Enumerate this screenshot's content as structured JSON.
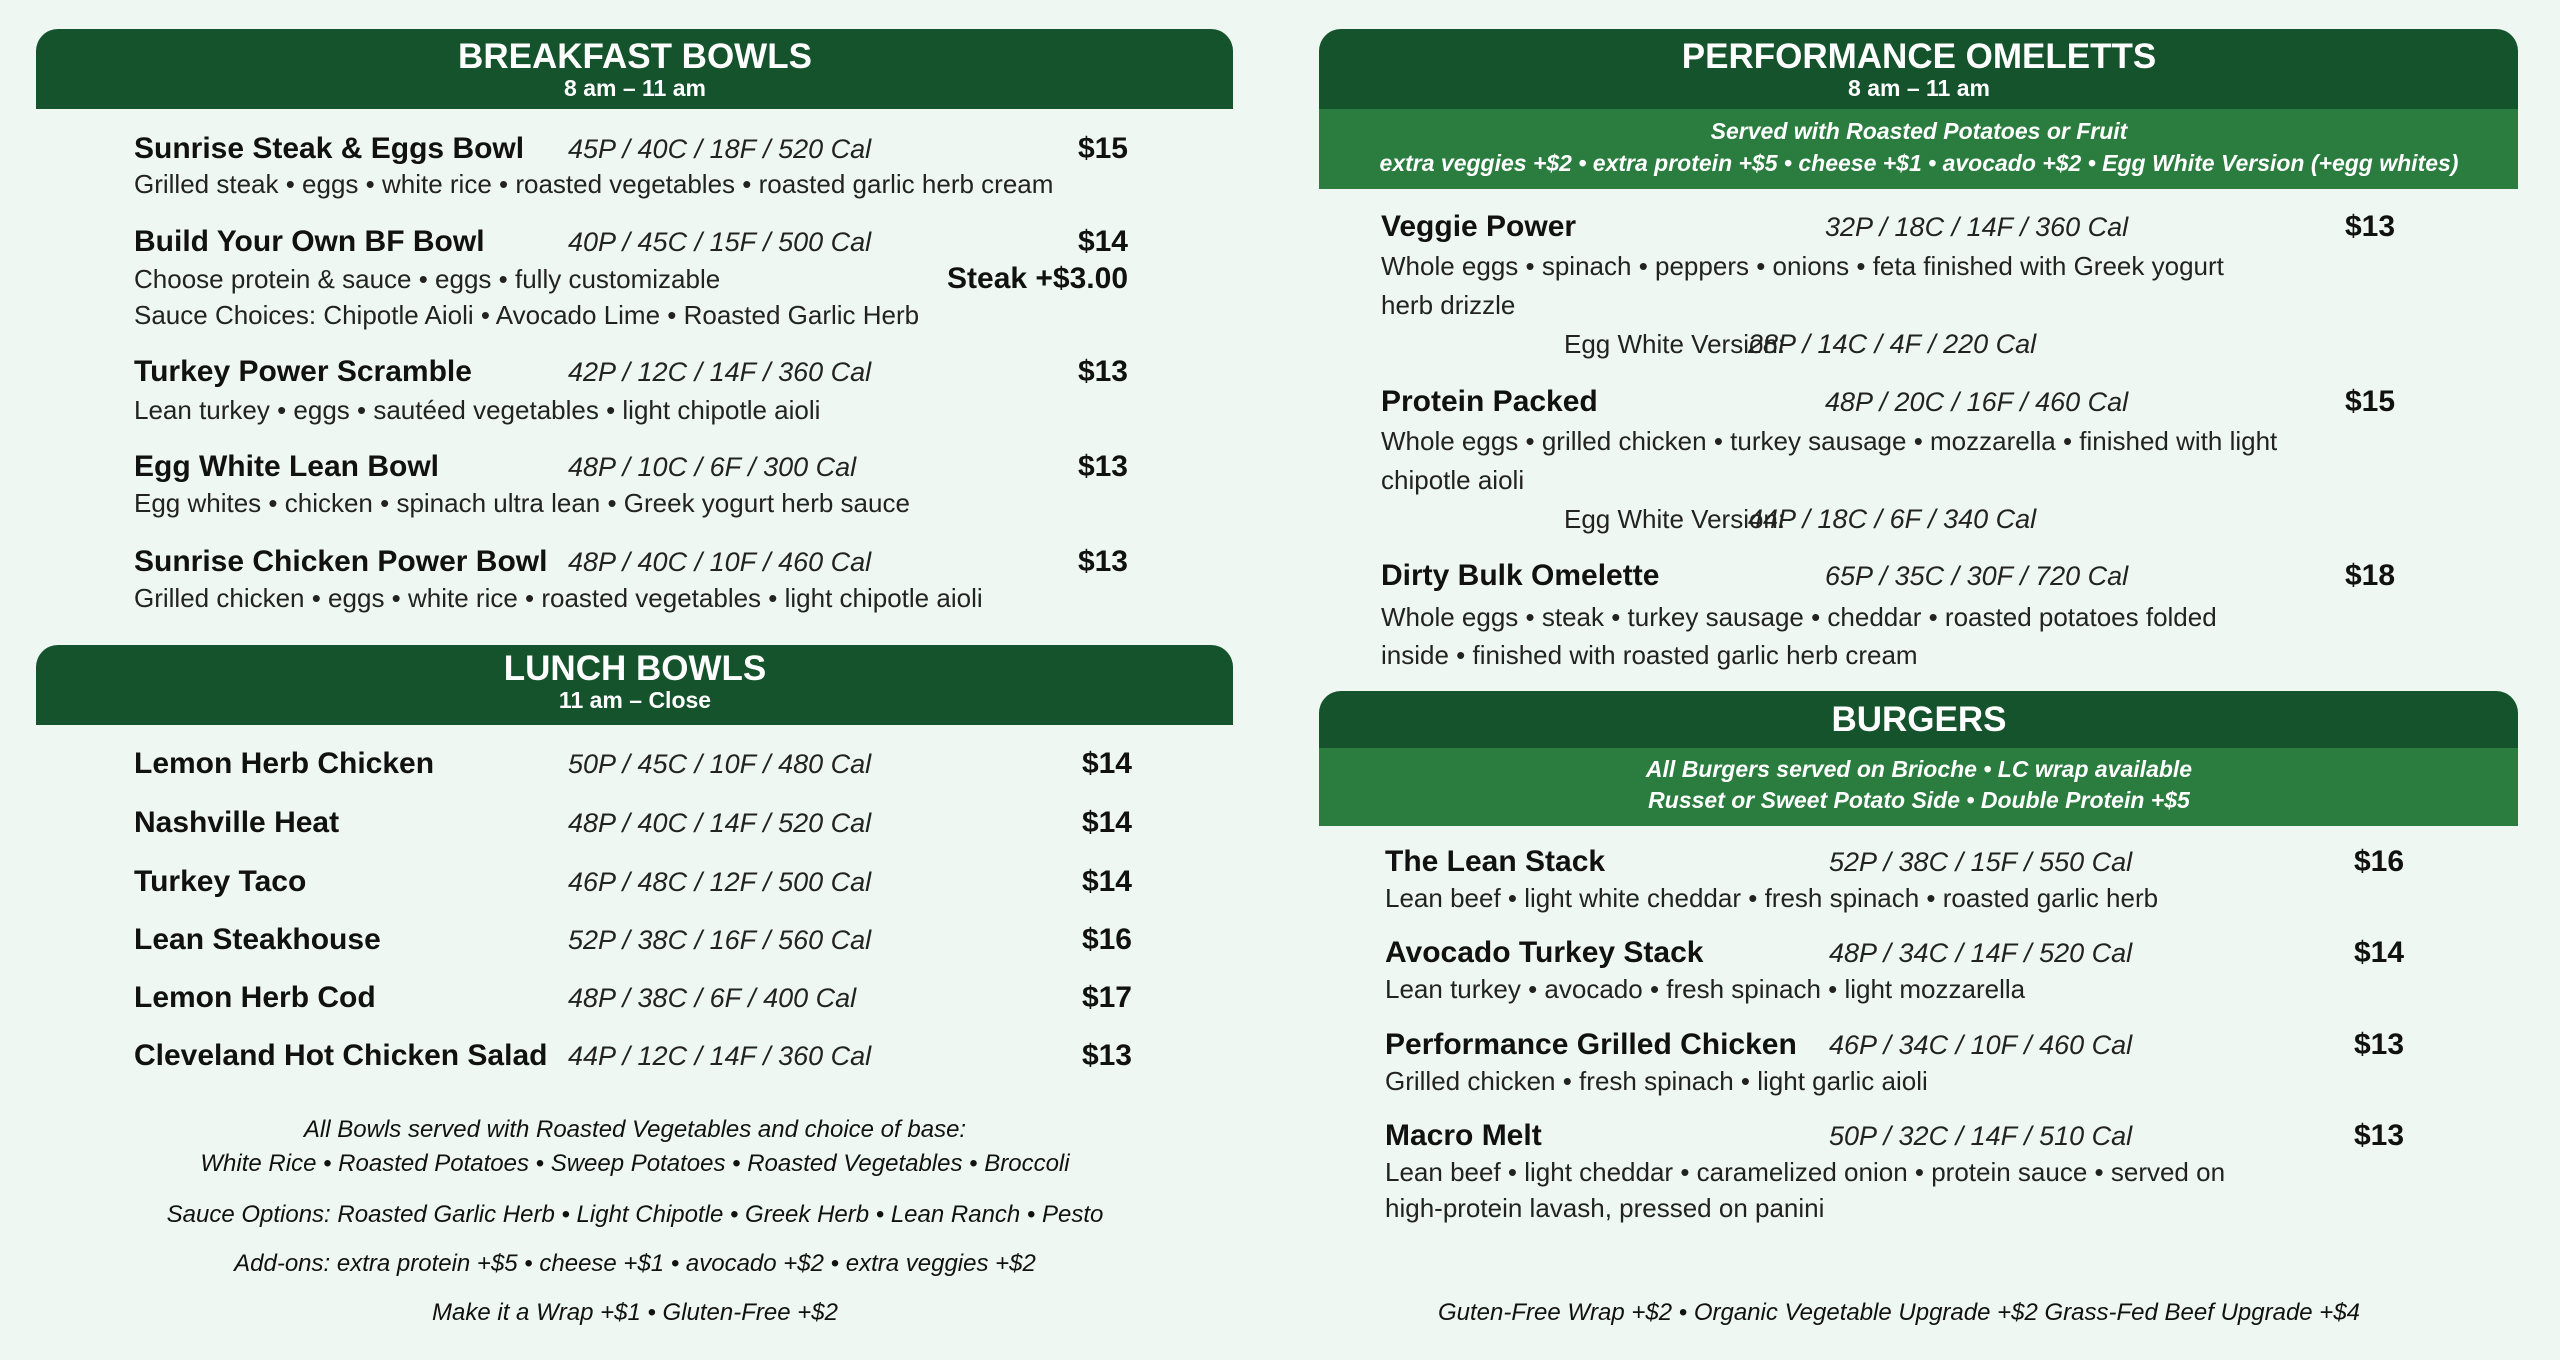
{
  "colors": {
    "header": "#15532c",
    "band": "#2a7d3f",
    "background": "#eef7f1"
  },
  "breakfast": {
    "title": "BREAKFAST BOWLS",
    "hours": "8 am – 11 am",
    "items": [
      {
        "name": "Sunrise Steak & Eggs Bowl",
        "macros": "45P / 40C / 18F / 520 Cal",
        "price": "$15",
        "desc": [
          "Grilled steak • eggs • white rice • roasted vegetables • roasted garlic herb cream"
        ]
      },
      {
        "name": "Build Your Own BF Bowl",
        "macros": "40P / 45C / 15F / 500 Cal",
        "price": "$14",
        "extra": "Steak +$3.00",
        "desc": [
          "Choose protein & sauce • eggs • fully customizable",
          "Sauce Choices: Chipotle Aioli • Avocado Lime • Roasted Garlic Herb"
        ]
      },
      {
        "name": "Turkey Power Scramble",
        "macros": "42P / 12C / 14F / 360 Cal",
        "price": "$13",
        "desc": [
          "Lean turkey • eggs • sautéed vegetables • light chipotle aioli"
        ]
      },
      {
        "name": "Egg White Lean Bowl",
        "macros": "48P / 10C / 6F / 300 Cal",
        "price": "$13",
        "desc": [
          "Egg whites • chicken • spinach ultra lean • Greek yogurt herb sauce"
        ]
      },
      {
        "name": "Sunrise Chicken Power Bowl",
        "macros": "48P / 40C / 10F / 460 Cal",
        "price": "$13",
        "desc": [
          "Grilled chicken • eggs • white rice • roasted vegetables • light chipotle aioli"
        ]
      }
    ]
  },
  "lunch": {
    "title": "LUNCH BOWLS",
    "hours": "11 am – Close",
    "items": [
      {
        "name": "Lemon Herb Chicken",
        "macros": "50P / 45C / 10F / 480 Cal",
        "price": "$14"
      },
      {
        "name": "Nashville Heat",
        "macros": "48P / 40C / 14F / 520 Cal",
        "price": "$14"
      },
      {
        "name": "Turkey Taco",
        "macros": "46P / 48C / 12F / 500 Cal",
        "price": "$14"
      },
      {
        "name": "Lean Steakhouse",
        "macros": "52P / 38C / 16F / 560 Cal",
        "price": "$16"
      },
      {
        "name": "Lemon Herb Cod",
        "macros": "48P / 38C / 6F / 400 Cal",
        "price": "$17"
      },
      {
        "name": "Cleveland Hot Chicken Salad",
        "macros": "44P / 12C / 14F / 360 Cal",
        "price": "$13"
      }
    ],
    "notes": [
      "All Bowls served with Roasted Vegetables and choice of base:",
      "White Rice • Roasted Potatoes • Sweep Potatoes • Roasted Vegetables • Broccoli",
      "Sauce Options: Roasted Garlic Herb • Light Chipotle • Greek Herb • Lean Ranch • Pesto",
      "Add-ons: extra protein +$5 • cheese +$1 •  avocado +$2 • extra veggies +$2",
      "Make it a Wrap +$1 • Gluten-Free +$2"
    ]
  },
  "omelettes": {
    "title": "PERFORMANCE OMELETTS",
    "hours": "8 am – 11 am",
    "band": [
      "Served with Roasted Potatoes or Fruit",
      "extra veggies +$2 • extra protein +$5 • cheese +$1 • avocado +$2 • Egg White Version (+egg whites)"
    ],
    "items": [
      {
        "name": "Veggie Power",
        "macros": "32P / 18C / 14F / 360 Cal",
        "price": "$13",
        "desc": [
          "Whole eggs • spinach • peppers • onions • feta finished with Greek yogurt",
          "herb drizzle"
        ],
        "egg_white_label": "Egg White Version:",
        "egg_white": "28P / 14C / 4F / 220 Cal"
      },
      {
        "name": "Protein Packed",
        "macros": "48P / 20C / 16F / 460 Cal",
        "price": "$15",
        "desc": [
          "Whole eggs • grilled chicken • turkey sausage • mozzarella • finished with light",
          "chipotle aioli"
        ],
        "egg_white_label": "Egg White Version:",
        "egg_white": "44P / 18C / 6F / 340 Cal"
      },
      {
        "name": "Dirty Bulk Omelette",
        "macros": "65P / 35C / 30F / 720 Cal",
        "price": "$18",
        "desc": [
          "Whole eggs • steak • turkey sausage • cheddar • roasted potatoes folded",
          "inside • finished with roasted garlic herb cream"
        ]
      }
    ]
  },
  "burgers": {
    "title": "BURGERS",
    "band": [
      "All Burgers served on Brioche • LC wrap available",
      "Russet or Sweet Potato Side • Double Protein +$5"
    ],
    "items": [
      {
        "name": "The Lean Stack",
        "macros": "52P / 38C / 15F / 550 Cal",
        "price": "$16",
        "desc": [
          "Lean beef • light white cheddar • fresh spinach • roasted garlic herb"
        ]
      },
      {
        "name": "Avocado Turkey Stack",
        "macros": "48P / 34C / 14F / 520 Cal",
        "price": "$14",
        "desc": [
          "Lean turkey • avocado • fresh spinach • light mozzarella"
        ]
      },
      {
        "name": "Performance Grilled Chicken",
        "macros": "46P / 34C / 10F / 460 Cal",
        "price": "$13",
        "desc": [
          "Grilled chicken • fresh spinach • light garlic aioli"
        ]
      },
      {
        "name": "Macro Melt",
        "macros": "50P / 32C / 14F / 510 Cal",
        "price": "$13",
        "desc": [
          "Lean beef • light cheddar • caramelized onion • protein sauce • served on",
          "high-protein lavash, pressed on panini"
        ]
      }
    ],
    "footer": "Guten-Free Wrap +$2 • Organic Vegetable Upgrade +$2 Grass-Fed Beef Upgrade +$4"
  }
}
